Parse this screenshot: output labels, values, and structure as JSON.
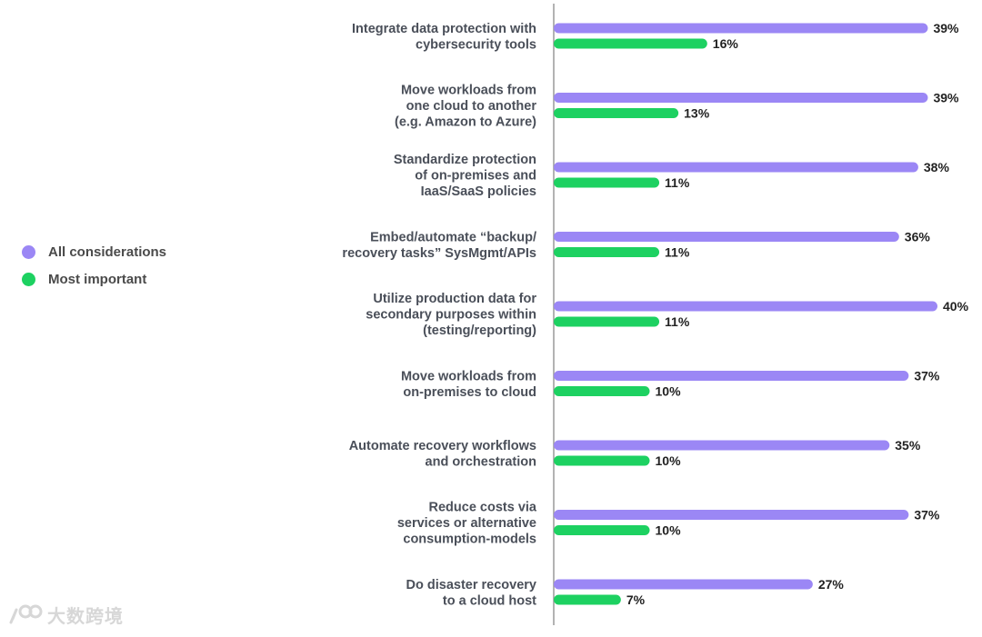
{
  "chart_data": {
    "type": "bar",
    "orientation": "horizontal",
    "categories": [
      [
        "Integrate data protection with",
        "cybersecurity tools"
      ],
      [
        "Move workloads from",
        "one cloud to another",
        "(e.g. Amazon to Azure)"
      ],
      [
        "Standardize protection",
        "of on-premises and",
        "IaaS/SaaS policies"
      ],
      [
        "Embed/automate “backup/",
        "recovery tasks” SysMgmt/APIs"
      ],
      [
        "Utilize production data for",
        "secondary purposes within",
        "(testing/reporting)"
      ],
      [
        "Move workloads from",
        "on-premises to cloud"
      ],
      [
        "Automate recovery workflows",
        "and orchestration"
      ],
      [
        "Reduce costs via",
        "services or alternative",
        "consumption-models"
      ],
      [
        "Do disaster recovery",
        "to a cloud host"
      ]
    ],
    "series": [
      {
        "name": "All considerations",
        "color": "#9b87f5",
        "values": [
          39,
          39,
          38,
          36,
          40,
          37,
          35,
          37,
          27
        ],
        "labels": [
          "39%",
          "39%",
          "38%",
          "36%",
          "40%",
          "37%",
          "35%",
          "37%",
          "27%"
        ]
      },
      {
        "name": "Most important",
        "color": "#1dd161",
        "values": [
          16,
          13,
          11,
          11,
          11,
          10,
          10,
          10,
          7
        ],
        "labels": [
          "16%",
          "13%",
          "11%",
          "11%",
          "11%",
          "10%",
          "10%",
          "10%",
          "7%"
        ]
      }
    ],
    "xlim": [
      0,
      40
    ],
    "title": "",
    "xlabel": "",
    "ylabel": "",
    "legend_position": "left-middle"
  },
  "legend": {
    "items": [
      {
        "label": "All considerations",
        "color": "#9b87f5"
      },
      {
        "label": "Most important",
        "color": "#1dd161"
      }
    ]
  },
  "watermark": {
    "text": "大数跨境"
  }
}
